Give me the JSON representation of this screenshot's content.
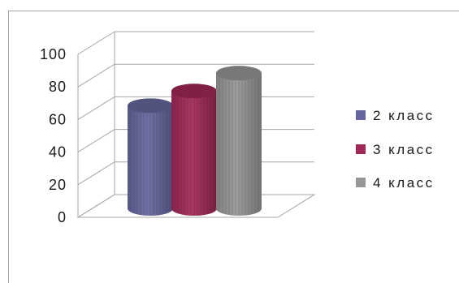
{
  "chart_data": {
    "type": "bar",
    "style": "3d-cylinder",
    "categories": [
      ""
    ],
    "series": [
      {
        "name": "2 класс",
        "values": [
          63
        ],
        "color": "#66669e"
      },
      {
        "name": "3 класс",
        "values": [
          72
        ],
        "color": "#a02858"
      },
      {
        "name": "4 класс",
        "values": [
          83
        ],
        "color": "#969696"
      }
    ],
    "ylim": [
      0,
      100
    ],
    "yticks": [
      "0",
      "20",
      "40",
      "60",
      "80",
      "100"
    ],
    "grid": true,
    "legend_position": "right",
    "title": "",
    "xlabel": "",
    "ylabel": ""
  }
}
